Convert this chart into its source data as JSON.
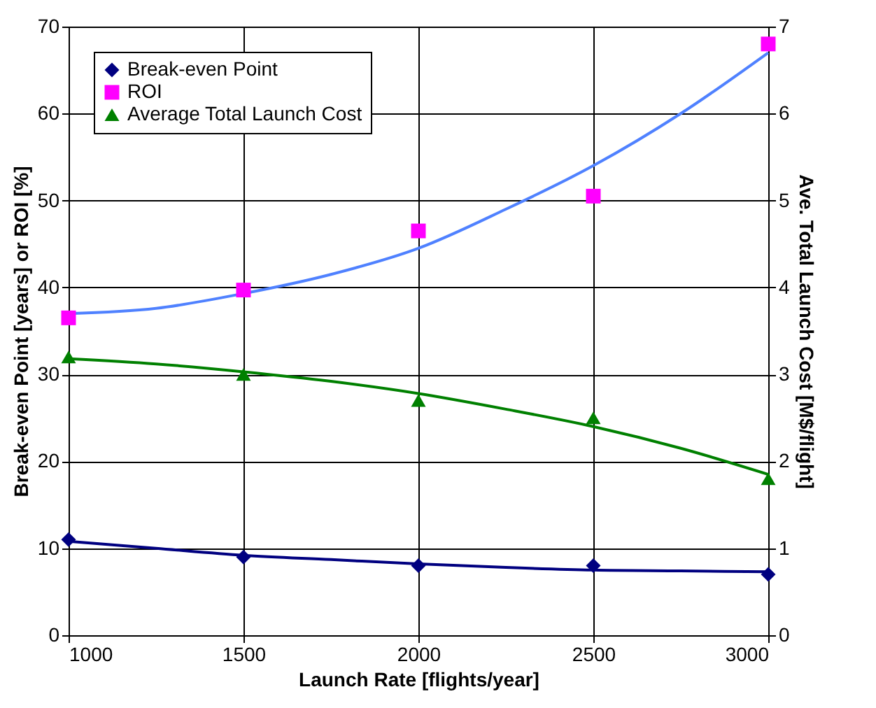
{
  "chart_data": {
    "type": "scatter",
    "xlabel": "Launch Rate [flights/year]",
    "ylabel": "Break-even Point [years] or ROI [%]",
    "y2label": "Ave. Total Launch Cost [M$/flight]",
    "x": [
      1000,
      1500,
      2000,
      2500,
      3000
    ],
    "xlim": [
      1000,
      3000
    ],
    "xticks": [
      1000,
      1500,
      2000,
      2500,
      3000
    ],
    "ylim": [
      0,
      70
    ],
    "yticks": [
      0,
      10,
      20,
      30,
      40,
      50,
      60,
      70
    ],
    "y2lim": [
      0,
      7
    ],
    "y2ticks": [
      0,
      1,
      2,
      3,
      4,
      5,
      6,
      7
    ],
    "grid": true,
    "legend": "top left",
    "series": [
      {
        "name": "Break-even Point",
        "color": "#000080",
        "marker": "diamond",
        "values": [
          11,
          9,
          8,
          8,
          7
        ]
      },
      {
        "name": "ROI",
        "color": "#ff00ff",
        "marker": "square",
        "values": [
          36.5,
          39.7,
          46.5,
          50.5,
          68
        ]
      },
      {
        "name": "Average Total Launch Cost",
        "color": "#008000",
        "marker": "triangle",
        "axis": "y2",
        "values": [
          3.2,
          3.0,
          2.7,
          2.5,
          1.8
        ]
      },
      {
        "type": "line",
        "color": "#000080",
        "marker": "none",
        "x": [
          1000,
          1250,
          1500,
          1750,
          2000,
          2250,
          2500,
          2750,
          3000
        ],
        "values": [
          10.8,
          10,
          9.2,
          8.7,
          8.2,
          7.8,
          7.5,
          7.4,
          7.3
        ]
      },
      {
        "type": "line",
        "color": "#4f81ff",
        "marker": "none",
        "x": [
          1000,
          1250,
          1500,
          1750,
          2000,
          2250,
          2500,
          2750,
          3000
        ],
        "values": [
          37,
          37.6,
          39.3,
          41.5,
          44.5,
          49,
          54,
          60,
          67
        ]
      },
      {
        "type": "line",
        "color": "#008000",
        "marker": "none",
        "axis": "y2",
        "x": [
          1000,
          1250,
          1500,
          1750,
          2000,
          2250,
          2500,
          2750,
          3000
        ],
        "values": [
          3.18,
          3.12,
          3.03,
          2.92,
          2.78,
          2.6,
          2.4,
          2.15,
          1.85
        ]
      }
    ]
  }
}
